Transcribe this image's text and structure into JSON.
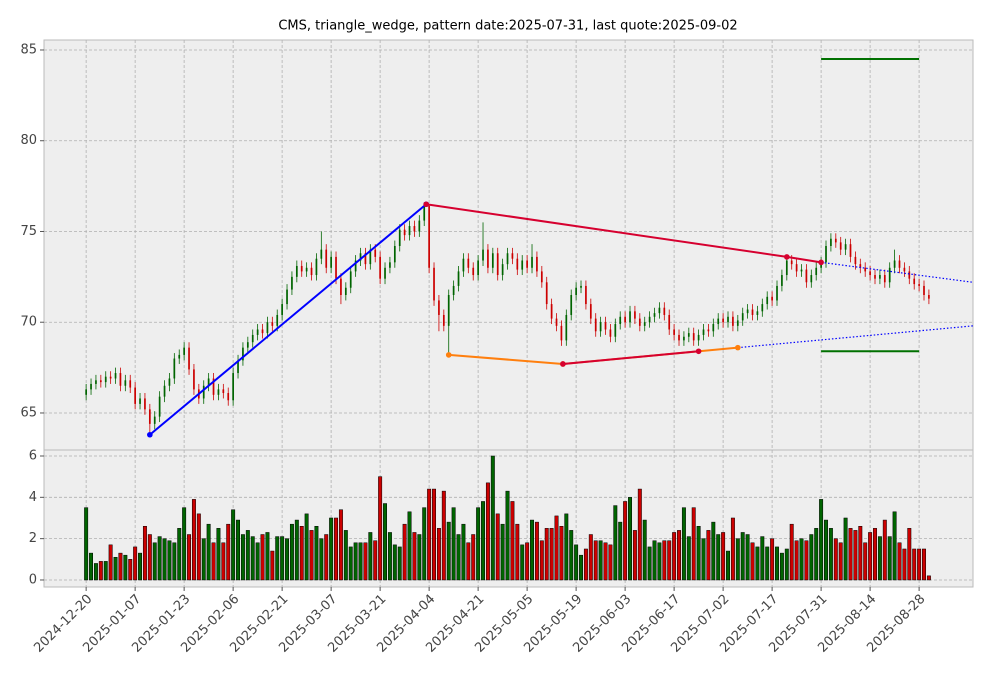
{
  "chart_data": {
    "type": "candlestick",
    "title": "CMS, triangle_wedge, pattern date:2025-07-31, last quote:2025-09-02",
    "up_color": "#006400",
    "down_color": "#cc0000",
    "grid": true,
    "xlim": [
      -8.6,
      181.0
    ],
    "ylim": [
      62.96,
      85.55
    ],
    "yticks": [
      65,
      70,
      75,
      80,
      85
    ],
    "volume_ylim": [
      -0.34,
      6.29
    ],
    "volume_yticks": [
      0,
      2,
      4,
      6
    ],
    "xticks": [
      {
        "value": 0,
        "label": "2024-12-20"
      },
      {
        "value": 10,
        "label": "2025-01-07"
      },
      {
        "value": 20,
        "label": "2025-01-23"
      },
      {
        "value": 30,
        "label": "2025-02-06"
      },
      {
        "value": 40,
        "label": "2025-02-21"
      },
      {
        "value": 50,
        "label": "2025-03-07"
      },
      {
        "value": 60,
        "label": "2025-03-21"
      },
      {
        "value": 70,
        "label": "2025-04-04"
      },
      {
        "value": 80,
        "label": "2025-04-21"
      },
      {
        "value": 90,
        "label": "2025-05-05"
      },
      {
        "value": 100,
        "label": "2025-05-19"
      },
      {
        "value": 110,
        "label": "2025-06-03"
      },
      {
        "value": 120,
        "label": "2025-06-17"
      },
      {
        "value": 130,
        "label": "2025-07-02"
      },
      {
        "value": 140,
        "label": "2025-07-17"
      },
      {
        "value": 150,
        "label": "2025-07-31"
      },
      {
        "value": 160,
        "label": "2025-08-14"
      },
      {
        "value": 170,
        "label": "2025-08-28"
      }
    ],
    "ohlc": [
      [
        66.0,
        66.6,
        65.7,
        66.3
      ],
      [
        66.3,
        66.9,
        66.0,
        66.6
      ],
      [
        66.6,
        67.1,
        66.3,
        66.8
      ],
      [
        66.8,
        67.1,
        66.4,
        66.7
      ],
      [
        66.7,
        67.3,
        66.4,
        67.0
      ],
      [
        67.0,
        67.3,
        66.6,
        66.9
      ],
      [
        66.9,
        67.5,
        66.6,
        67.2
      ],
      [
        67.2,
        67.5,
        66.2,
        66.5
      ],
      [
        66.5,
        67.1,
        66.2,
        66.8
      ],
      [
        66.8,
        67.1,
        66.1,
        66.4
      ],
      [
        66.4,
        66.7,
        65.2,
        65.5
      ],
      [
        65.5,
        66.1,
        65.2,
        65.8
      ],
      [
        65.8,
        66.1,
        64.9,
        65.2
      ],
      [
        65.2,
        65.5,
        63.9,
        64.4
      ],
      [
        64.4,
        65.1,
        64.1,
        64.8
      ],
      [
        64.8,
        66.2,
        64.5,
        65.9
      ],
      [
        65.9,
        66.8,
        65.6,
        66.5
      ],
      [
        66.5,
        67.2,
        66.2,
        66.9
      ],
      [
        66.9,
        68.3,
        66.6,
        68.0
      ],
      [
        68.0,
        68.5,
        67.7,
        68.2
      ],
      [
        68.2,
        68.9,
        67.9,
        68.6
      ],
      [
        68.6,
        68.9,
        67.1,
        67.4
      ],
      [
        67.4,
        67.7,
        66.0,
        66.3
      ],
      [
        66.3,
        66.6,
        65.5,
        65.8
      ],
      [
        65.8,
        66.8,
        65.5,
        66.5
      ],
      [
        66.5,
        67.2,
        66.2,
        66.9
      ],
      [
        66.9,
        67.2,
        65.7,
        66.0
      ],
      [
        66.0,
        66.6,
        65.7,
        66.3
      ],
      [
        66.3,
        66.6,
        65.8,
        66.1
      ],
      [
        66.1,
        66.4,
        65.4,
        65.7
      ],
      [
        65.7,
        67.5,
        65.4,
        67.2
      ],
      [
        67.2,
        68.2,
        66.9,
        67.9
      ],
      [
        67.9,
        68.9,
        67.6,
        68.6
      ],
      [
        68.6,
        69.2,
        68.3,
        68.9
      ],
      [
        68.9,
        69.6,
        68.6,
        69.3
      ],
      [
        69.3,
        69.9,
        69.0,
        69.6
      ],
      [
        69.6,
        69.9,
        69.1,
        69.4
      ],
      [
        69.4,
        70.3,
        69.1,
        70.0
      ],
      [
        70.0,
        70.3,
        69.5,
        69.8
      ],
      [
        69.8,
        70.7,
        69.5,
        70.4
      ],
      [
        70.4,
        71.3,
        70.1,
        71.0
      ],
      [
        71.0,
        72.1,
        70.7,
        71.8
      ],
      [
        71.8,
        72.8,
        71.5,
        72.5
      ],
      [
        72.5,
        73.4,
        72.2,
        73.1
      ],
      [
        73.1,
        73.4,
        72.5,
        72.8
      ],
      [
        72.8,
        73.3,
        72.5,
        73.0
      ],
      [
        73.0,
        73.3,
        72.3,
        72.6
      ],
      [
        72.6,
        73.8,
        72.3,
        73.5
      ],
      [
        73.5,
        75.0,
        73.2,
        74.0
      ],
      [
        74.0,
        74.3,
        72.7,
        73.0
      ],
      [
        73.0,
        73.9,
        72.7,
        73.6
      ],
      [
        73.6,
        73.9,
        72.1,
        72.4
      ],
      [
        72.4,
        72.7,
        71.0,
        71.5
      ],
      [
        71.5,
        72.2,
        71.2,
        71.9
      ],
      [
        71.9,
        73.1,
        71.6,
        72.8
      ],
      [
        72.8,
        73.7,
        72.5,
        73.4
      ],
      [
        73.4,
        74.1,
        73.1,
        73.8
      ],
      [
        73.8,
        74.1,
        72.9,
        73.2
      ],
      [
        73.2,
        74.3,
        72.9,
        74.0
      ],
      [
        74.0,
        74.3,
        73.3,
        73.6
      ],
      [
        73.6,
        73.9,
        72.1,
        72.4
      ],
      [
        72.4,
        73.3,
        72.1,
        73.0
      ],
      [
        73.0,
        73.6,
        72.7,
        73.3
      ],
      [
        73.3,
        74.5,
        73.0,
        74.2
      ],
      [
        74.2,
        75.4,
        73.9,
        75.1
      ],
      [
        75.1,
        75.4,
        74.5,
        74.8
      ],
      [
        74.8,
        75.6,
        74.5,
        75.3
      ],
      [
        75.3,
        75.6,
        74.7,
        75.0
      ],
      [
        75.0,
        75.9,
        74.7,
        75.6
      ],
      [
        75.6,
        76.6,
        75.3,
        76.4
      ],
      [
        76.4,
        76.5,
        72.7,
        73.0
      ],
      [
        73.0,
        73.3,
        70.9,
        71.2
      ],
      [
        71.2,
        71.5,
        69.5,
        70.4
      ],
      [
        70.4,
        70.7,
        69.5,
        69.8
      ],
      [
        69.8,
        71.8,
        68.2,
        71.5
      ],
      [
        71.5,
        72.3,
        71.2,
        72.0
      ],
      [
        72.0,
        73.1,
        71.7,
        72.8
      ],
      [
        72.8,
        73.8,
        72.5,
        73.5
      ],
      [
        73.5,
        73.8,
        72.7,
        73.0
      ],
      [
        73.0,
        73.3,
        72.3,
        72.6
      ],
      [
        72.6,
        73.7,
        72.3,
        73.4
      ],
      [
        73.4,
        75.5,
        73.1,
        74.0
      ],
      [
        74.0,
        74.3,
        72.7,
        73.0
      ],
      [
        73.0,
        74.1,
        72.7,
        73.8
      ],
      [
        73.8,
        74.1,
        72.3,
        72.6
      ],
      [
        72.6,
        73.5,
        72.3,
        73.2
      ],
      [
        73.2,
        74.1,
        72.9,
        73.8
      ],
      [
        73.8,
        74.1,
        73.2,
        73.5
      ],
      [
        73.5,
        73.8,
        72.6,
        72.9
      ],
      [
        72.9,
        73.7,
        72.6,
        73.4
      ],
      [
        73.4,
        73.7,
        72.7,
        73.0
      ],
      [
        73.0,
        74.3,
        72.7,
        73.6
      ],
      [
        73.6,
        73.9,
        72.5,
        72.8
      ],
      [
        72.8,
        73.1,
        71.9,
        72.2
      ],
      [
        72.2,
        72.5,
        70.7,
        71.0
      ],
      [
        71.0,
        71.3,
        69.9,
        70.2
      ],
      [
        70.2,
        70.5,
        69.5,
        69.8
      ],
      [
        69.8,
        70.1,
        68.7,
        69.0
      ],
      [
        69.0,
        70.7,
        68.7,
        70.4
      ],
      [
        70.4,
        71.8,
        70.1,
        71.5
      ],
      [
        71.5,
        72.2,
        71.2,
        71.9
      ],
      [
        71.9,
        72.3,
        71.6,
        72.0
      ],
      [
        72.0,
        72.3,
        70.7,
        71.0
      ],
      [
        71.0,
        71.3,
        69.9,
        70.2
      ],
      [
        70.2,
        70.5,
        69.2,
        69.5
      ],
      [
        69.5,
        70.3,
        69.2,
        70.0
      ],
      [
        70.0,
        70.3,
        69.3,
        69.6
      ],
      [
        69.6,
        69.9,
        68.9,
        69.2
      ],
      [
        69.2,
        70.2,
        68.9,
        69.9
      ],
      [
        69.9,
        70.6,
        69.6,
        70.3
      ],
      [
        70.3,
        70.6,
        69.7,
        70.0
      ],
      [
        70.0,
        70.9,
        69.7,
        70.6
      ],
      [
        70.6,
        70.9,
        69.9,
        70.2
      ],
      [
        70.2,
        70.5,
        69.5,
        69.8
      ],
      [
        69.8,
        70.3,
        69.5,
        70.0
      ],
      [
        70.0,
        70.6,
        69.7,
        70.3
      ],
      [
        70.3,
        70.8,
        70.0,
        70.5
      ],
      [
        70.5,
        71.1,
        70.2,
        70.8
      ],
      [
        70.8,
        71.1,
        70.1,
        70.4
      ],
      [
        70.4,
        70.7,
        69.3,
        69.6
      ],
      [
        69.6,
        69.9,
        69.0,
        69.3
      ],
      [
        69.3,
        69.6,
        68.7,
        69.0
      ],
      [
        69.0,
        69.5,
        68.7,
        69.2
      ],
      [
        69.2,
        69.7,
        68.9,
        69.4
      ],
      [
        69.4,
        69.7,
        68.7,
        69.0
      ],
      [
        69.0,
        69.6,
        68.7,
        69.3
      ],
      [
        69.3,
        69.9,
        69.0,
        69.6
      ],
      [
        69.6,
        69.9,
        69.2,
        69.5
      ],
      [
        69.5,
        70.2,
        69.2,
        69.9
      ],
      [
        69.9,
        70.5,
        69.6,
        70.2
      ],
      [
        70.2,
        70.5,
        69.7,
        70.0
      ],
      [
        70.0,
        70.6,
        69.7,
        70.3
      ],
      [
        70.3,
        70.6,
        69.5,
        69.8
      ],
      [
        69.8,
        70.4,
        69.5,
        70.1
      ],
      [
        70.1,
        70.8,
        69.8,
        70.5
      ],
      [
        70.5,
        71.0,
        70.2,
        70.7
      ],
      [
        70.7,
        71.0,
        70.1,
        70.4
      ],
      [
        70.4,
        70.9,
        70.1,
        70.6
      ],
      [
        70.6,
        71.3,
        70.3,
        71.0
      ],
      [
        71.0,
        71.7,
        70.7,
        71.4
      ],
      [
        71.4,
        71.7,
        70.9,
        71.2
      ],
      [
        71.2,
        72.3,
        70.9,
        72.0
      ],
      [
        72.0,
        72.9,
        71.7,
        72.6
      ],
      [
        72.6,
        73.7,
        72.3,
        73.4
      ],
      [
        73.4,
        73.7,
        72.9,
        73.2
      ],
      [
        73.2,
        73.5,
        72.5,
        72.8
      ],
      [
        72.8,
        73.2,
        72.5,
        72.9
      ],
      [
        72.9,
        73.2,
        71.9,
        72.2
      ],
      [
        72.2,
        72.9,
        71.9,
        72.6
      ],
      [
        72.6,
        73.3,
        72.3,
        73.0
      ],
      [
        73.0,
        73.6,
        72.7,
        73.3
      ],
      [
        73.3,
        74.5,
        73.0,
        74.2
      ],
      [
        74.2,
        74.9,
        73.9,
        74.6
      ],
      [
        74.6,
        74.9,
        74.1,
        74.4
      ],
      [
        74.4,
        74.7,
        73.7,
        74.0
      ],
      [
        74.0,
        74.6,
        73.7,
        74.3
      ],
      [
        74.3,
        74.6,
        73.3,
        73.6
      ],
      [
        73.6,
        73.9,
        72.9,
        73.2
      ],
      [
        73.2,
        73.5,
        72.7,
        73.0
      ],
      [
        73.0,
        73.3,
        72.5,
        72.8
      ],
      [
        72.8,
        73.1,
        72.3,
        72.6
      ],
      [
        72.6,
        72.9,
        72.1,
        72.4
      ],
      [
        72.4,
        72.9,
        72.1,
        72.6
      ],
      [
        72.6,
        72.9,
        71.9,
        72.2
      ],
      [
        72.2,
        73.3,
        71.9,
        73.0
      ],
      [
        73.0,
        74.0,
        72.7,
        73.4
      ],
      [
        73.4,
        73.7,
        72.7,
        73.0
      ],
      [
        73.0,
        73.3,
        72.5,
        72.8
      ],
      [
        72.8,
        73.1,
        72.1,
        72.4
      ],
      [
        72.4,
        72.7,
        71.8,
        72.1
      ],
      [
        72.1,
        72.4,
        71.7,
        72.0
      ],
      [
        72.0,
        72.3,
        71.2,
        71.5
      ],
      [
        71.5,
        71.8,
        71.0,
        71.3
      ]
    ],
    "volume": [
      3.5,
      1.3,
      0.8,
      0.9,
      0.9,
      1.7,
      1.1,
      1.3,
      1.2,
      1.0,
      1.6,
      1.3,
      2.6,
      2.2,
      1.8,
      2.1,
      2.0,
      1.9,
      1.8,
      2.5,
      3.5,
      2.2,
      3.9,
      3.2,
      2.0,
      2.7,
      1.8,
      2.5,
      1.8,
      2.7,
      3.4,
      2.9,
      2.2,
      2.4,
      2.1,
      1.8,
      2.2,
      2.3,
      1.4,
      2.1,
      2.1,
      2.0,
      2.7,
      2.9,
      2.6,
      3.2,
      2.4,
      2.6,
      2.0,
      2.2,
      3.0,
      3.0,
      3.4,
      2.4,
      1.6,
      1.8,
      1.8,
      1.8,
      2.3,
      1.9,
      5.0,
      3.7,
      2.3,
      1.7,
      1.6,
      2.7,
      3.3,
      2.3,
      2.2,
      3.5,
      4.4,
      4.4,
      2.5,
      4.3,
      2.8,
      3.5,
      2.2,
      2.7,
      1.8,
      2.2,
      3.5,
      3.8,
      4.7,
      6.0,
      3.2,
      2.7,
      4.3,
      3.8,
      2.7,
      1.7,
      1.8,
      2.9,
      2.8,
      1.9,
      2.5,
      2.5,
      3.1,
      2.6,
      3.2,
      2.4,
      1.7,
      1.2,
      1.5,
      2.2,
      1.9,
      1.9,
      1.8,
      1.7,
      3.6,
      2.8,
      3.8,
      4.0,
      2.4,
      4.4,
      2.9,
      1.6,
      1.9,
      1.8,
      1.9,
      1.9,
      2.3,
      2.4,
      3.5,
      2.1,
      3.5,
      2.6,
      2.0,
      2.4,
      2.8,
      2.2,
      2.3,
      1.4,
      3.0,
      2.0,
      2.3,
      2.2,
      1.8,
      1.6,
      2.1,
      1.6,
      2.0,
      1.6,
      1.3,
      1.5,
      2.7,
      1.9,
      2.0,
      1.9,
      2.2,
      2.5,
      3.9,
      2.9,
      2.5,
      2.0,
      1.8,
      3.0,
      2.5,
      2.4,
      2.6,
      1.8,
      2.3,
      2.5,
      2.1,
      2.9,
      2.1,
      3.3,
      1.8,
      1.5,
      2.5,
      1.5,
      1.5,
      1.5,
      0.2
    ],
    "lines": [
      {
        "color": "#0000ff",
        "style": "solid",
        "marker": true,
        "x": [
          13,
          69.4
        ],
        "y": [
          63.8,
          76.5
        ]
      },
      {
        "color": "#0000ff",
        "style": "dotted",
        "marker": false,
        "x": [
          150,
          181
        ],
        "y": [
          73.3,
          72.2
        ]
      },
      {
        "color": "#d6002f",
        "style": "solid",
        "marker": true,
        "x": [
          69.4,
          143,
          150
        ],
        "y": [
          76.5,
          73.6,
          73.3
        ]
      },
      {
        "color": "#0000ff",
        "style": "dotted",
        "marker": false,
        "x": [
          133,
          181
        ],
        "y": [
          68.6,
          69.8
        ]
      },
      {
        "color": "#ff7f0e",
        "style": "solid",
        "marker": true,
        "x": [
          74,
          97.3,
          133
        ],
        "y": [
          68.2,
          67.7,
          68.6
        ]
      },
      {
        "color": "#d6002f",
        "style": "solid",
        "marker": true,
        "x": [
          97.3,
          125
        ],
        "y": [
          67.7,
          68.4
        ]
      },
      {
        "color": "#007000",
        "style": "solid",
        "marker": false,
        "x": [
          150,
          170
        ],
        "y": [
          84.5,
          84.5
        ]
      },
      {
        "color": "#007000",
        "style": "solid",
        "marker": false,
        "x": [
          150,
          170
        ],
        "y": [
          68.4,
          68.4
        ]
      }
    ]
  }
}
